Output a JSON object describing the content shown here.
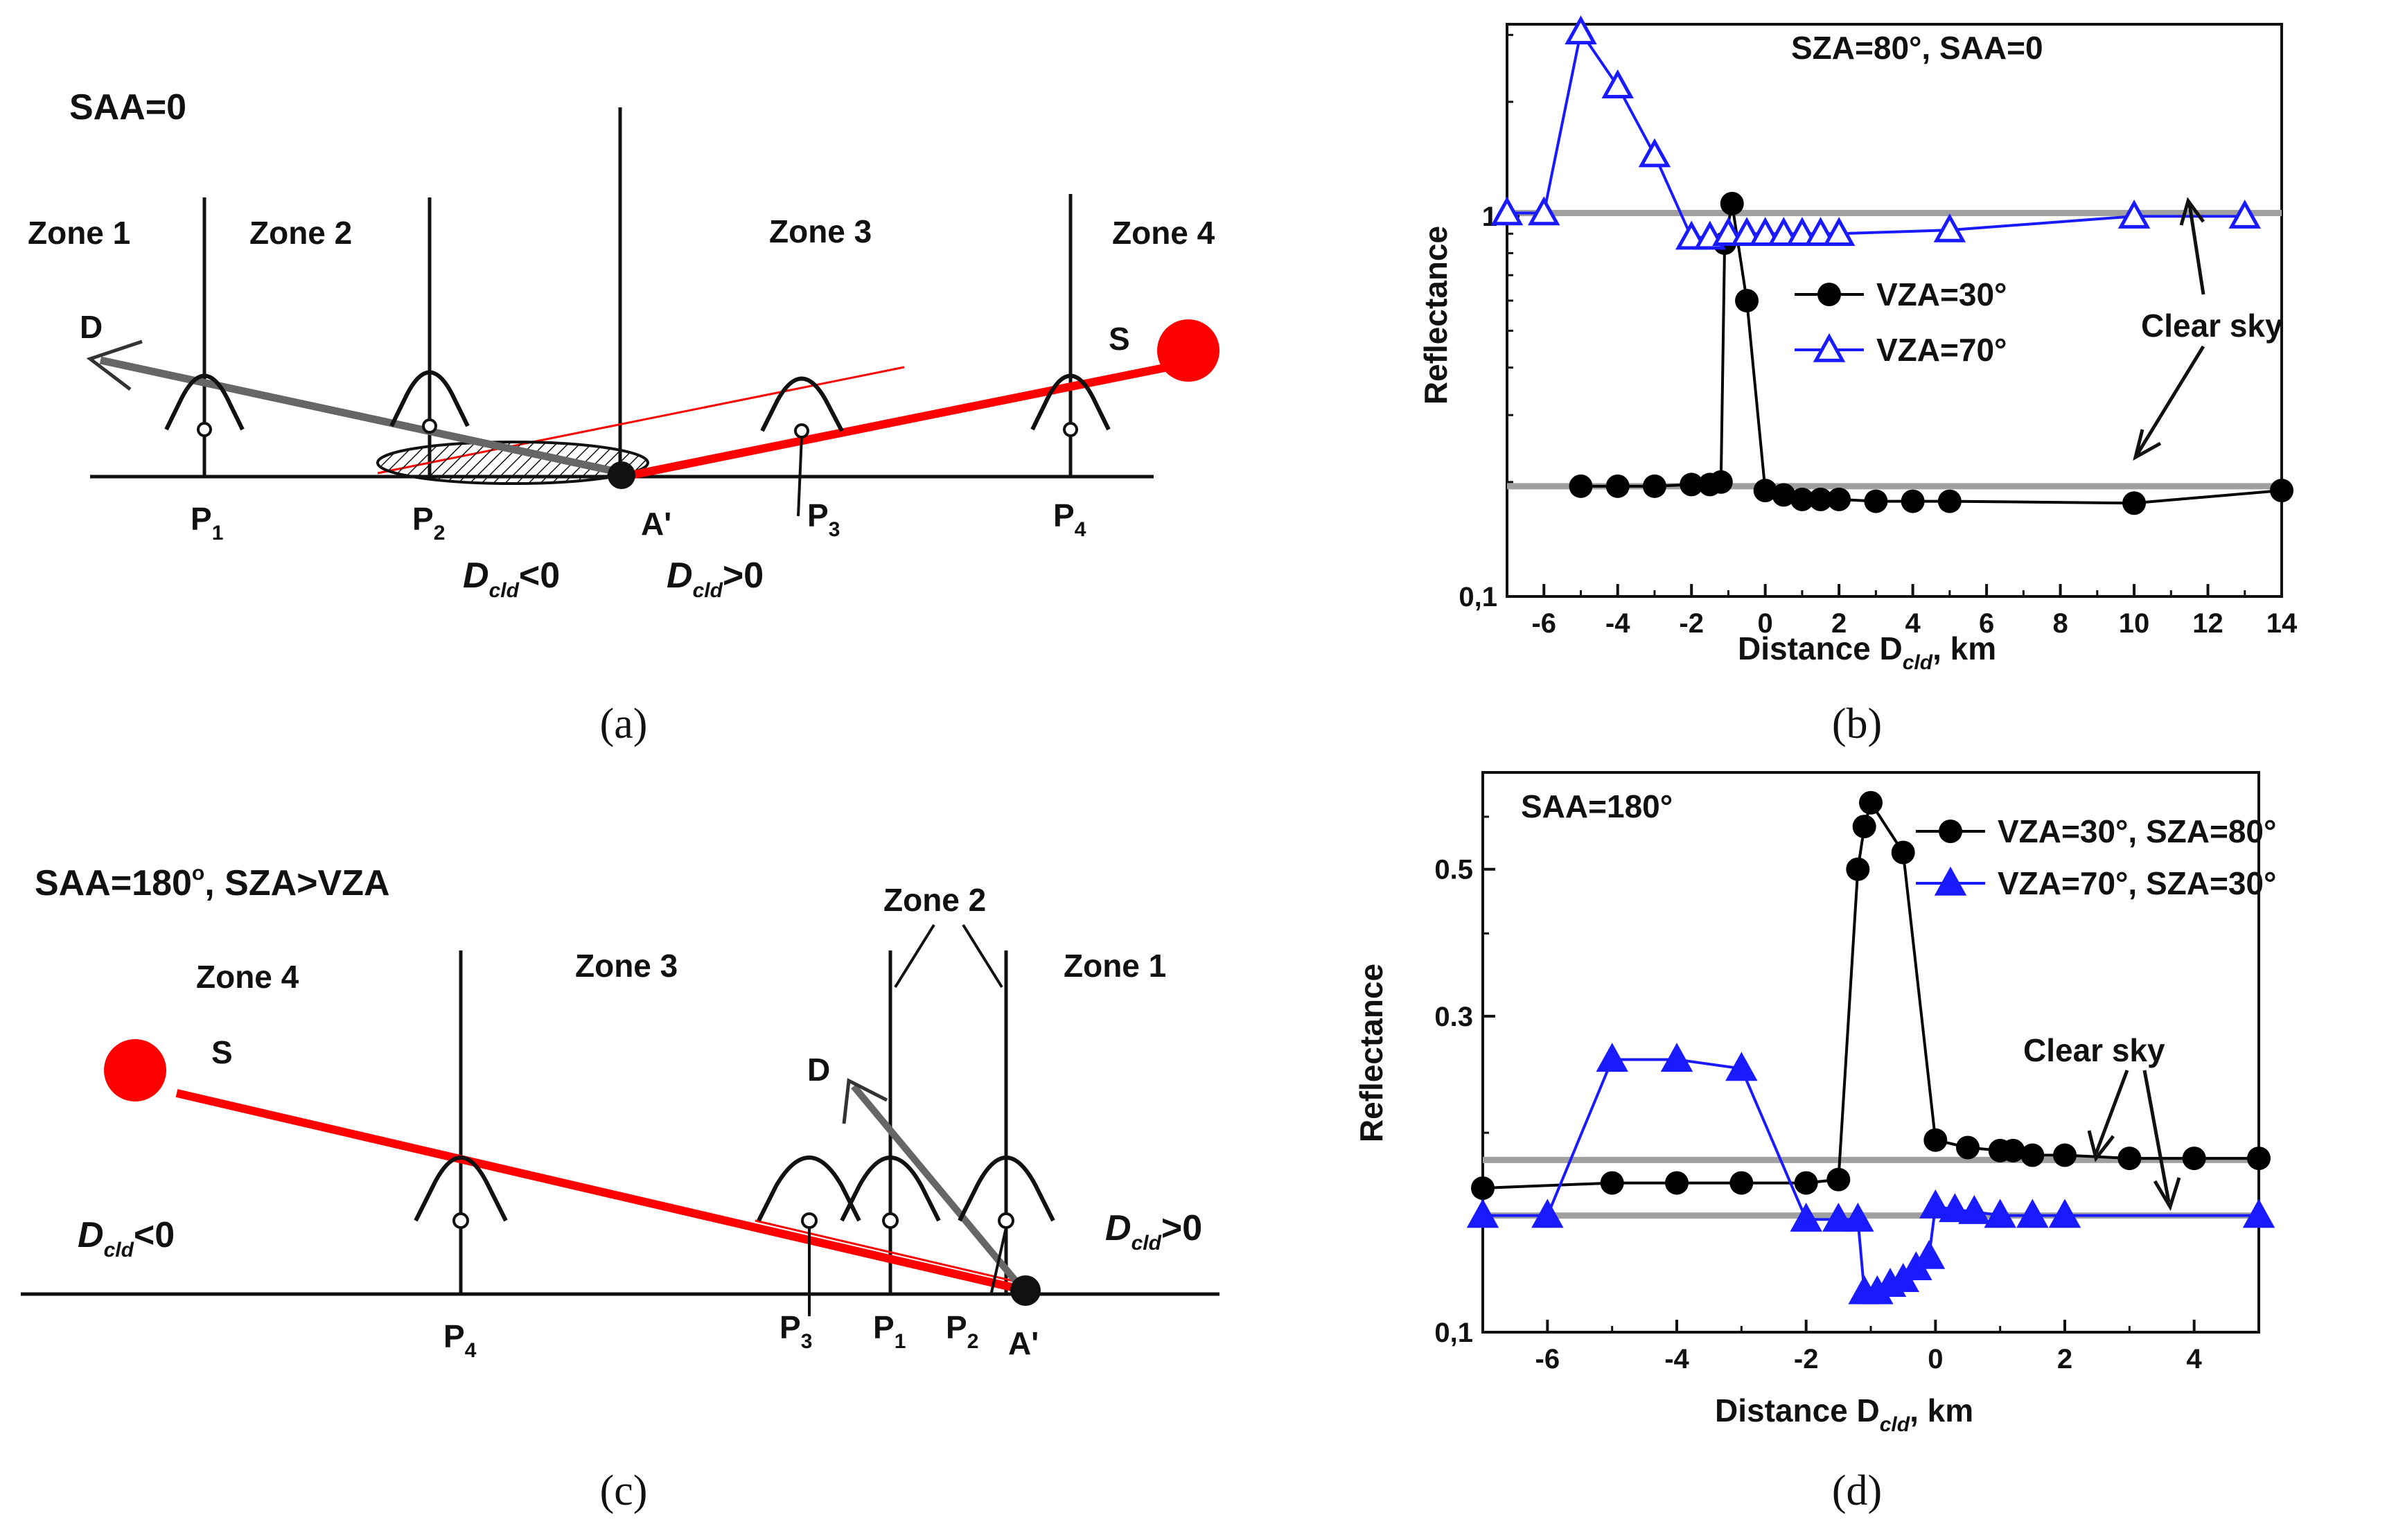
{
  "panels": {
    "a": {
      "title": "SAA=0",
      "zones": [
        "Zone 1",
        "Zone 2",
        "Zone 3",
        "Zone 4"
      ],
      "sensors": [
        "P",
        "P",
        "P",
        "P"
      ],
      "sensor_subs": [
        "1",
        "2",
        "3",
        "4"
      ],
      "point": "A'",
      "d_label": "D",
      "s_label": "S",
      "dcld_neg": "D",
      "dcld_neg_sub": "cld",
      "dcld_neg_rel": "<0",
      "dcld_pos": "D",
      "dcld_pos_sub": "cld",
      "dcld_pos_rel": ">0",
      "caption": "(a)"
    },
    "c": {
      "title": "SAA=180",
      "title_deg": "o",
      "title_rest": ", SZA>VZA",
      "zones": [
        "Zone 4",
        "Zone 3",
        "Zone 2",
        "Zone 1"
      ],
      "sensors": [
        "P",
        "P",
        "P",
        "P"
      ],
      "sensor_subs": [
        "4",
        "3",
        "1",
        "2"
      ],
      "point": "A'",
      "d_label": "D",
      "s_label": "S",
      "dcld_neg": "D",
      "dcld_neg_sub": "cld",
      "dcld_neg_rel": "<0",
      "dcld_pos": "D",
      "dcld_pos_sub": "cld",
      "dcld_pos_rel": ">0",
      "caption": "(c)"
    },
    "b": {
      "caption": "(b)",
      "annotation": "Clear sky"
    },
    "d": {
      "caption": "(d)",
      "annotation": "Clear sky"
    }
  },
  "chart_data": [
    {
      "id": "b",
      "type": "line",
      "yscale": "log",
      "title": "SZA=80°, SAA=0",
      "xlabel": "Distance D",
      "xlabel_sub": "cld",
      "xlabel_unit": ", km",
      "ylabel": "Reflectance",
      "xlim": [
        -7,
        14
      ],
      "ylim": [
        0.1,
        3.2
      ],
      "xticks": [
        -6,
        -4,
        -2,
        0,
        2,
        4,
        6,
        8,
        10,
        12,
        14
      ],
      "yticks": [
        {
          "v": 0.1,
          "label": "0,1"
        },
        {
          "v": 1,
          "label": "1"
        }
      ],
      "series": [
        {
          "name": "VZA=30°",
          "color": "#000000",
          "marker": "circle",
          "points": [
            [
              -5,
              0.195
            ],
            [
              -4,
              0.195
            ],
            [
              -3,
              0.195
            ],
            [
              -2,
              0.197
            ],
            [
              -1.5,
              0.197
            ],
            [
              -1.2,
              0.2
            ],
            [
              -1.1,
              0.85
            ],
            [
              -0.9,
              1.08
            ],
            [
              -0.5,
              0.6
            ],
            [
              0,
              0.19
            ],
            [
              0.5,
              0.185
            ],
            [
              1,
              0.18
            ],
            [
              1.5,
              0.18
            ],
            [
              2,
              0.18
            ],
            [
              3,
              0.178
            ],
            [
              4,
              0.178
            ],
            [
              5,
              0.178
            ],
            [
              10,
              0.176
            ],
            [
              14,
              0.19
            ]
          ]
        },
        {
          "name": "VZA=70°",
          "color": "#1a1aff",
          "marker": "triangle",
          "points": [
            [
              -7,
              1.02
            ],
            [
              -6,
              1.02
            ],
            [
              -5,
              3.05
            ],
            [
              -4,
              2.2
            ],
            [
              -3,
              1.45
            ],
            [
              -2,
              0.88
            ],
            [
              -1.5,
              0.88
            ],
            [
              -1,
              0.9
            ],
            [
              -0.5,
              0.9
            ],
            [
              0,
              0.9
            ],
            [
              0.5,
              0.9
            ],
            [
              1,
              0.9
            ],
            [
              1.5,
              0.9
            ],
            [
              2,
              0.9
            ],
            [
              5,
              0.92
            ],
            [
              10,
              1.0
            ],
            [
              13,
              1.0
            ]
          ]
        }
      ],
      "reference_lines": [
        {
          "y": 1.02,
          "label": "Clear sky"
        },
        {
          "y": 0.195,
          "label": "Clear sky"
        }
      ]
    },
    {
      "id": "d",
      "type": "line",
      "yscale": "log",
      "title": "SAA=180°",
      "xlabel": "Distance D",
      "xlabel_sub": "cld",
      "xlabel_unit": ", km",
      "ylabel": "Reflectance",
      "xlim": [
        -7,
        5
      ],
      "ylim": [
        0.1,
        0.7
      ],
      "xticks": [
        -6,
        -4,
        -2,
        0,
        2,
        4
      ],
      "yticks": [
        {
          "v": 0.1,
          "label": "0,1"
        },
        {
          "v": 0.3,
          "label": "0.3"
        },
        {
          "v": 0.5,
          "label": "0.5"
        }
      ],
      "series": [
        {
          "name": "VZA=30°, SZA=80°",
          "color": "#000000",
          "marker": "circle",
          "points": [
            [
              -7,
              0.165
            ],
            [
              -5,
              0.168
            ],
            [
              -4,
              0.168
            ],
            [
              -3,
              0.168
            ],
            [
              -2,
              0.168
            ],
            [
              -1.5,
              0.17
            ],
            [
              -1.2,
              0.5
            ],
            [
              -1.1,
              0.58
            ],
            [
              -1,
              0.63
            ],
            [
              -0.5,
              0.53
            ],
            [
              0,
              0.195
            ],
            [
              0.5,
              0.19
            ],
            [
              1,
              0.188
            ],
            [
              1.2,
              0.188
            ],
            [
              1.5,
              0.185
            ],
            [
              2,
              0.185
            ],
            [
              3,
              0.183
            ],
            [
              4,
              0.183
            ],
            [
              5,
              0.183
            ]
          ]
        },
        {
          "name": "VZA=70°, SZA=30°",
          "color": "#1a1aff",
          "marker": "triangle",
          "points": [
            [
              -7,
              0.15
            ],
            [
              -6,
              0.15
            ],
            [
              -5,
              0.258
            ],
            [
              -4,
              0.258
            ],
            [
              -3,
              0.25
            ],
            [
              -2,
              0.148
            ],
            [
              -1.5,
              0.148
            ],
            [
              -1.2,
              0.148
            ],
            [
              -1.1,
              0.115
            ],
            [
              -0.9,
              0.115
            ],
            [
              -0.7,
              0.118
            ],
            [
              -0.5,
              0.12
            ],
            [
              -0.3,
              0.125
            ],
            [
              -0.1,
              0.13
            ],
            [
              0,
              0.155
            ],
            [
              0.3,
              0.153
            ],
            [
              0.6,
              0.152
            ],
            [
              1,
              0.15
            ],
            [
              1.5,
              0.15
            ],
            [
              2,
              0.15
            ],
            [
              5,
              0.15
            ]
          ]
        }
      ],
      "reference_lines": [
        {
          "y": 0.182,
          "label": "Clear sky"
        },
        {
          "y": 0.15,
          "label": "Clear sky"
        }
      ]
    }
  ]
}
